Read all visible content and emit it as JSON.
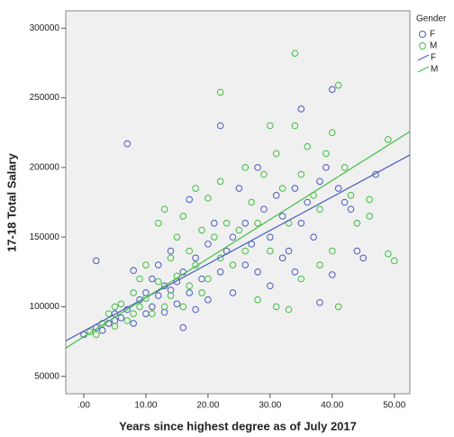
{
  "chart_data": {
    "type": "scatter",
    "ylabel": "17-18 Total Salary",
    "xlabel": "Years since highest degree as of July 2017",
    "legend_title": "Gender",
    "legend": "top-right",
    "grid": false,
    "xlim": [
      -2.9,
      52.5
    ],
    "ylim": [
      37500,
      312500
    ],
    "xticks": [
      {
        "value": 0,
        "label": ".00"
      },
      {
        "value": 10,
        "label": "10.00"
      },
      {
        "value": 20,
        "label": "20.00"
      },
      {
        "value": 30,
        "label": "30.00"
      },
      {
        "value": 40,
        "label": "40.00"
      },
      {
        "value": 50,
        "label": "50.00"
      }
    ],
    "yticks": [
      50000,
      100000,
      150000,
      200000,
      250000,
      300000
    ],
    "series": [
      {
        "name": "F",
        "color": "#4a5bbf",
        "x": [
          0,
          2,
          2,
          3,
          4,
          5,
          5,
          6,
          7,
          7,
          8,
          8,
          9,
          10,
          10,
          11,
          11,
          12,
          12,
          13,
          13,
          14,
          14,
          15,
          15,
          16,
          16,
          17,
          17,
          18,
          18,
          19,
          20,
          20,
          21,
          22,
          22,
          23,
          24,
          24,
          25,
          26,
          26,
          27,
          28,
          28,
          29,
          30,
          30,
          31,
          32,
          32,
          33,
          34,
          34,
          35,
          35,
          36,
          37,
          38,
          38,
          39,
          40,
          40,
          41,
          42,
          43,
          44,
          45,
          47
        ],
        "values": [
          80000,
          85000,
          133000,
          83000,
          88000,
          90000,
          95000,
          92000,
          217000,
          98000,
          126000,
          88000,
          105000,
          110000,
          95000,
          120000,
          100000,
          108000,
          130000,
          115000,
          96000,
          112000,
          140000,
          118000,
          102000,
          125000,
          85000,
          177000,
          110000,
          135000,
          98000,
          120000,
          145000,
          105000,
          160000,
          230000,
          125000,
          140000,
          150000,
          110000,
          185000,
          130000,
          160000,
          145000,
          200000,
          125000,
          170000,
          150000,
          115000,
          180000,
          165000,
          135000,
          140000,
          185000,
          125000,
          242000,
          160000,
          175000,
          150000,
          103000,
          190000,
          200000,
          256000,
          123000,
          185000,
          175000,
          170000,
          140000,
          135000,
          195000
        ]
      },
      {
        "name": "M",
        "color": "#3fbf3f",
        "x": [
          1,
          2,
          3,
          4,
          5,
          5,
          6,
          7,
          8,
          8,
          9,
          9,
          10,
          10,
          11,
          12,
          12,
          13,
          13,
          14,
          14,
          15,
          15,
          16,
          16,
          17,
          17,
          18,
          18,
          19,
          19,
          20,
          20,
          21,
          22,
          22,
          22,
          23,
          24,
          25,
          26,
          26,
          27,
          28,
          28,
          29,
          30,
          30,
          31,
          31,
          32,
          33,
          33,
          34,
          34,
          35,
          35,
          36,
          37,
          38,
          38,
          39,
          40,
          40,
          41,
          41,
          42,
          43,
          44,
          46,
          46,
          49,
          49,
          50
        ],
        "values": [
          82000,
          80000,
          88000,
          95000,
          100000,
          86000,
          102000,
          90000,
          110000,
          95000,
          120000,
          100000,
          130000,
          106000,
          95000,
          160000,
          118000,
          170000,
          100000,
          135000,
          108000,
          150000,
          122000,
          165000,
          100000,
          140000,
          115000,
          185000,
          130000,
          155000,
          110000,
          178000,
          120000,
          150000,
          254000,
          190000,
          135000,
          160000,
          130000,
          155000,
          200000,
          140000,
          175000,
          160000,
          105000,
          195000,
          230000,
          140000,
          210000,
          100000,
          185000,
          160000,
          98000,
          282000,
          230000,
          195000,
          120000,
          215000,
          180000,
          170000,
          130000,
          210000,
          225000,
          140000,
          259000,
          100000,
          200000,
          180000,
          160000,
          165000,
          177000,
          220000,
          138000,
          133000
        ]
      }
    ],
    "fit_lines": [
      {
        "name": "F",
        "color": "#4a5bbf",
        "x": [
          -2.9,
          52.5
        ],
        "values": [
          75500,
          209000
        ]
      },
      {
        "name": "M",
        "color": "#3fbf3f",
        "x": [
          -2.9,
          52.5
        ],
        "values": [
          70300,
          225800
        ]
      }
    ]
  }
}
